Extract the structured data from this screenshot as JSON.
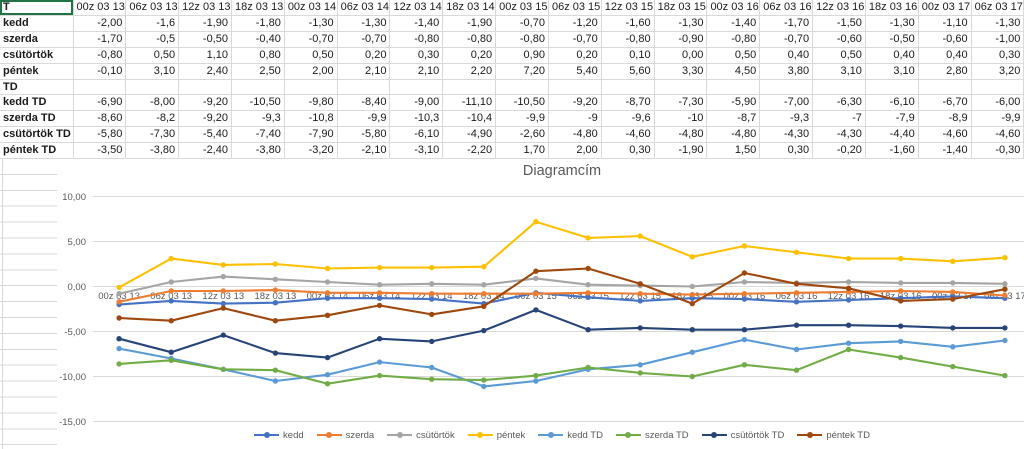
{
  "sheet": {
    "selected_cell": "T",
    "selection_color": "#217346",
    "gridline_color": "#d9d9d9"
  },
  "table": {
    "corner_header": "T",
    "columns": [
      "00z 03 13",
      "06z 03 13",
      "12z 03 13",
      "18z 03 13",
      "00z 03 14",
      "06z 03 14",
      "12z 03 14",
      "18z 03 14",
      "00z 03 15",
      "06z 03 15",
      "12z 03 15",
      "18z 03 15",
      "00z 03 16",
      "06z 03 16",
      "12z 03 16",
      "18z 03 16",
      "00z 03 17",
      "06z 03 17"
    ],
    "rows": [
      {
        "label": "kedd",
        "values": [
          "-2,00",
          "-1,6",
          "-1,90",
          "-1,80",
          "-1,30",
          "-1,30",
          "-1,40",
          "-1,90",
          "-0,70",
          "-1,20",
          "-1,60",
          "-1,30",
          "-1,40",
          "-1,70",
          "-1,50",
          "-1,30",
          "-1,10",
          "-1,30"
        ]
      },
      {
        "label": "szerda",
        "values": [
          "-1,70",
          "-0,5",
          "-0,50",
          "-0,40",
          "-0,70",
          "-0,70",
          "-0,80",
          "-0,80",
          "-0,80",
          "-0,70",
          "-0,80",
          "-0,90",
          "-0,80",
          "-0,70",
          "-0,60",
          "-0,50",
          "-0,60",
          "-1,00"
        ]
      },
      {
        "label": "csütörtök",
        "values": [
          "-0,80",
          "0,50",
          "1,10",
          "0,80",
          "0,50",
          "0,20",
          "0,30",
          "0,20",
          "0,90",
          "0,20",
          "0,10",
          "0,00",
          "0,50",
          "0,40",
          "0,50",
          "0,40",
          "0,40",
          "0,30"
        ]
      },
      {
        "label": "péntek",
        "values": [
          "-0,10",
          "3,10",
          "2,40",
          "2,50",
          "2,00",
          "2,10",
          "2,10",
          "2,20",
          "7,20",
          "5,40",
          "5,60",
          "3,30",
          "4,50",
          "3,80",
          "3,10",
          "3,10",
          "2,80",
          "3,20"
        ]
      },
      {
        "label": "TD",
        "values": [
          "",
          "",
          "",
          "",
          "",
          "",
          "",
          "",
          "",
          "",
          "",
          "",
          "",
          "",
          "",
          "",
          "",
          ""
        ]
      },
      {
        "label": "kedd TD",
        "values": [
          "-6,90",
          "-8,00",
          "-9,20",
          "-10,50",
          "-9,80",
          "-8,40",
          "-9,00",
          "-11,10",
          "-10,50",
          "-9,20",
          "-8,70",
          "-7,30",
          "-5,90",
          "-7,00",
          "-6,30",
          "-6,10",
          "-6,70",
          "-6,00"
        ]
      },
      {
        "label": "szerda TD",
        "values": [
          "-8,60",
          "-8,2",
          "-9,20",
          "-9,3",
          "-10,8",
          "-9,9",
          "-10,3",
          "-10,4",
          "-9,9",
          "-9",
          "-9,6",
          "-10",
          "-8,7",
          "-9,3",
          "-7",
          "-7,9",
          "-8,9",
          "-9,9"
        ]
      },
      {
        "label": "csütörtök TD",
        "values": [
          "-5,80",
          "-7,30",
          "-5,40",
          "-7,40",
          "-7,90",
          "-5,80",
          "-6,10",
          "-4,90",
          "-2,60",
          "-4,80",
          "-4,60",
          "-4,80",
          "-4,80",
          "-4,30",
          "-4,30",
          "-4,40",
          "-4,60",
          "-4,60"
        ]
      },
      {
        "label": "péntek TD",
        "values": [
          "-3,50",
          "-3,80",
          "-2,40",
          "-3,80",
          "-3,20",
          "-2,10",
          "-3,10",
          "-2,20",
          "1,70",
          "2,00",
          "0,30",
          "-1,90",
          "1,50",
          "0,30",
          "-0,20",
          "-1,60",
          "-1,40",
          "-0,30"
        ]
      }
    ]
  },
  "chart_data": {
    "type": "line",
    "title": "Diagramcím",
    "xlabel": "",
    "ylabel": "",
    "ylim": [
      -15,
      10
    ],
    "grid": "horizontal",
    "legend_position": "bottom",
    "title_color": "#595959",
    "axis_text_color": "#595959",
    "gridline_color": "#d9d9d9",
    "x": [
      "00z 03 13",
      "06z 03 13",
      "12z 03 13",
      "18z 03 13",
      "00z 03 14",
      "06z 03 14",
      "12z 03 14",
      "18z 03 14",
      "00z 03 15",
      "06z 03 15",
      "12z 03 15",
      "18z 03 15",
      "00z 03 16",
      "06z 03 16",
      "12z 03 16",
      "18z 03 16",
      "00z 03 17",
      "06z 03 17"
    ],
    "yticks": [
      {
        "v": 10,
        "label": "10,00"
      },
      {
        "v": 5,
        "label": "5,00"
      },
      {
        "v": 0,
        "label": "0,00"
      },
      {
        "v": -5,
        "label": "-5,00"
      },
      {
        "v": -10,
        "label": "-10,00"
      },
      {
        "v": -15,
        "label": "-15,00"
      }
    ],
    "series": [
      {
        "name": "kedd",
        "color": "#4472C4",
        "values": [
          -2.0,
          -1.6,
          -1.9,
          -1.8,
          -1.3,
          -1.3,
          -1.4,
          -1.9,
          -0.7,
          -1.2,
          -1.6,
          -1.3,
          -1.4,
          -1.7,
          -1.5,
          -1.3,
          -1.1,
          -1.3
        ]
      },
      {
        "name": "szerda",
        "color": "#ED7D31",
        "values": [
          -1.7,
          -0.5,
          -0.5,
          -0.4,
          -0.7,
          -0.7,
          -0.8,
          -0.8,
          -0.8,
          -0.7,
          -0.8,
          -0.9,
          -0.8,
          -0.7,
          -0.6,
          -0.5,
          -0.6,
          -1.0
        ]
      },
      {
        "name": "csütörtök",
        "color": "#A5A5A5",
        "values": [
          -0.8,
          0.5,
          1.1,
          0.8,
          0.5,
          0.2,
          0.3,
          0.2,
          0.9,
          0.2,
          0.1,
          0.0,
          0.5,
          0.4,
          0.5,
          0.4,
          0.4,
          0.3
        ]
      },
      {
        "name": "péntek",
        "color": "#FFC000",
        "values": [
          -0.1,
          3.1,
          2.4,
          2.5,
          2.0,
          2.1,
          2.1,
          2.2,
          7.2,
          5.4,
          5.6,
          3.3,
          4.5,
          3.8,
          3.1,
          3.1,
          2.8,
          3.2
        ]
      },
      {
        "name": "kedd TD",
        "color": "#5B9BD5",
        "values": [
          -6.9,
          -8.0,
          -9.2,
          -10.5,
          -9.8,
          -8.4,
          -9.0,
          -11.1,
          -10.5,
          -9.2,
          -8.7,
          -7.3,
          -5.9,
          -7.0,
          -6.3,
          -6.1,
          -6.7,
          -6.0
        ]
      },
      {
        "name": "szerda TD",
        "color": "#70AD47",
        "values": [
          -8.6,
          -8.2,
          -9.2,
          -9.3,
          -10.8,
          -9.9,
          -10.3,
          -10.4,
          -9.9,
          -9.0,
          -9.6,
          -10.0,
          -8.7,
          -9.3,
          -7.0,
          -7.9,
          -8.9,
          -9.9
        ]
      },
      {
        "name": "csütörtök TD",
        "color": "#264478",
        "values": [
          -5.8,
          -7.3,
          -5.4,
          -7.4,
          -7.9,
          -5.8,
          -6.1,
          -4.9,
          -2.6,
          -4.8,
          -4.6,
          -4.8,
          -4.8,
          -4.3,
          -4.3,
          -4.4,
          -4.6,
          -4.6
        ]
      },
      {
        "name": "péntek TD",
        "color": "#9E480E",
        "values": [
          -3.5,
          -3.8,
          -2.4,
          -3.8,
          -3.2,
          -2.1,
          -3.1,
          -2.2,
          1.7,
          2.0,
          0.3,
          -1.9,
          1.5,
          0.3,
          -0.2,
          -1.6,
          -1.4,
          -0.3
        ]
      }
    ]
  }
}
